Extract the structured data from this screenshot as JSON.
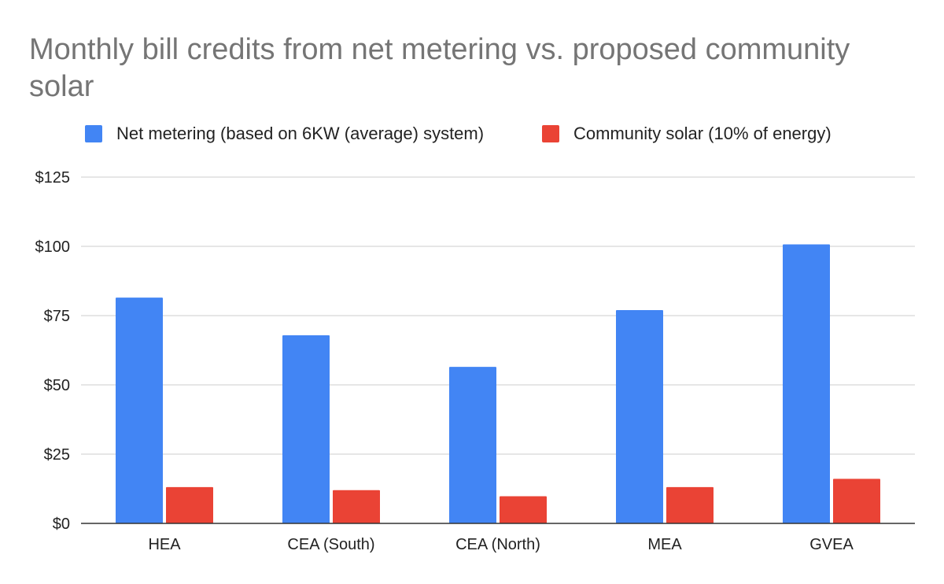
{
  "chart_data": {
    "type": "bar",
    "title": "Monthly bill credits from net metering vs. proposed community solar",
    "categories": [
      "HEA",
      "CEA (South)",
      "CEA (North)",
      "MEA",
      "GVEA"
    ],
    "series": [
      {
        "name": "Net metering (based on 6KW (average) system)",
        "color": "#4285f4",
        "values": [
          81.5,
          67.9,
          56.5,
          77.0,
          100.7
        ]
      },
      {
        "name": "Community solar (10% of energy)",
        "color": "#ea4335",
        "values": [
          13.1,
          12.0,
          9.8,
          13.1,
          16.1
        ]
      }
    ],
    "yticks": [
      "$0",
      "$25",
      "$50",
      "$75",
      "$100",
      "$125"
    ],
    "ytick_values": [
      0,
      25,
      50,
      75,
      100,
      125
    ],
    "ylim": [
      0,
      125
    ],
    "xlabel": "",
    "ylabel": "",
    "grid": true,
    "legend_position": "top"
  }
}
